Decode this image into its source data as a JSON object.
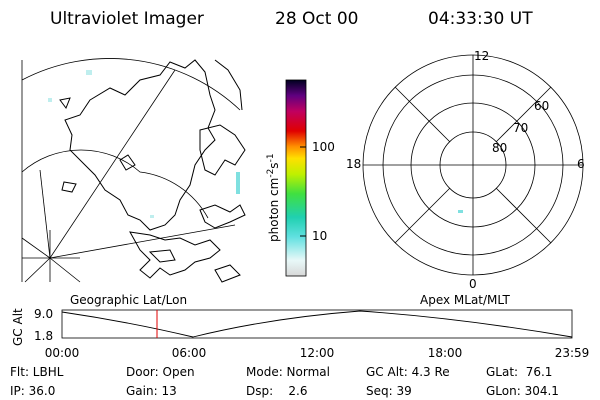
{
  "header": {
    "title": "Ultraviolet Imager",
    "date": "28 Oct 00",
    "time": "04:33:30 UT"
  },
  "colorbar": {
    "ticks": [
      "100",
      "10"
    ],
    "unit": "photon cm",
    "unit_exp": "-2",
    "unit2": "s",
    "unit2_exp": "-1"
  },
  "polar": {
    "mlt_labels": [
      "12",
      "6",
      "0",
      "18"
    ],
    "mlat_labels": [
      "60",
      "70",
      "80"
    ]
  },
  "timeline": {
    "left_label": "Geographic Lat/Lon",
    "right_label": "Apex MLat/MLT",
    "y_label": "GC Alt",
    "y_ticks": [
      "9.0",
      "1.8"
    ],
    "x_ticks": [
      "00:00",
      "06:00",
      "12:00",
      "18:00",
      "23:59"
    ]
  },
  "status": {
    "rows": [
      [
        "Flt: LBHL",
        "Door: Open",
        "Mode: Normal",
        "GC Alt: 4.3 Re",
        "GLat:  76.1"
      ],
      [
        "IP: 36.0",
        "Gain: 13",
        "Dsp:    2.6",
        "Seq: 39",
        "GLon: 304.1"
      ]
    ]
  }
}
